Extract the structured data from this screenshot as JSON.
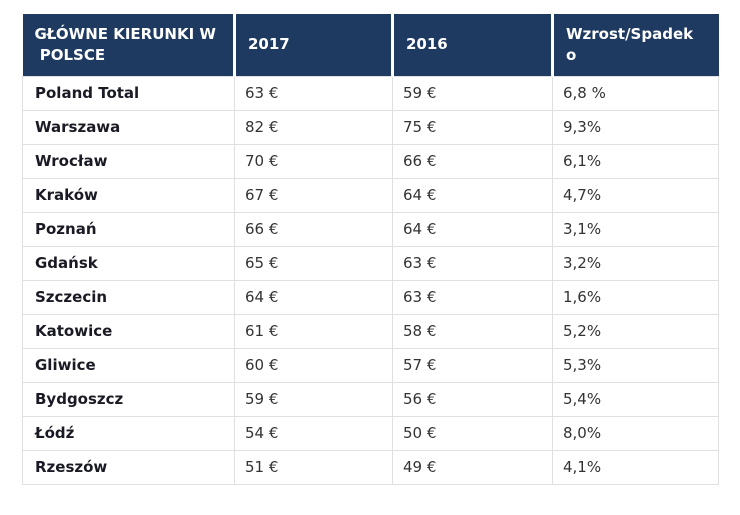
{
  "colors": {
    "header_bg": "#1f3a60",
    "header_text": "#ffffff",
    "row_label_text": "#1a1a24",
    "value_text": "#333333",
    "grid_line": "#e0e0e0",
    "page_bg": "#ffffff"
  },
  "table": {
    "headers": [
      {
        "id": "destination",
        "label": "GŁÓWNE KIERUNKI W\n POLSCE"
      },
      {
        "id": "y2017",
        "label": "2017"
      },
      {
        "id": "y2016",
        "label": "2016"
      },
      {
        "id": "change",
        "label": "Wzrost/Spadek o"
      }
    ],
    "rows": [
      {
        "destination": "Poland Total",
        "y2017": "63 €",
        "y2016": "59 €",
        "change": "6,8 %"
      },
      {
        "destination": "Warszawa",
        "y2017": "82 €",
        "y2016": "75 €",
        "change": "9,3%"
      },
      {
        "destination": "Wrocław",
        "y2017": "70 €",
        "y2016": "66 €",
        "change": "6,1%"
      },
      {
        "destination": "Kraków",
        "y2017": "67 €",
        "y2016": "64 €",
        "change": "4,7%"
      },
      {
        "destination": "Poznań",
        "y2017": "66 €",
        "y2016": "64 €",
        "change": "3,1%"
      },
      {
        "destination": "Gdańsk",
        "y2017": "65 €",
        "y2016": "63 €",
        "change": "3,2%"
      },
      {
        "destination": "Szczecin",
        "y2017": "64 €",
        "y2016": "63 €",
        "change": "1,6%"
      },
      {
        "destination": "Katowice",
        "y2017": "61 €",
        "y2016": "58 €",
        "change": "5,2%"
      },
      {
        "destination": "Gliwice",
        "y2017": "60 €",
        "y2016": "57 €",
        "change": "5,3%"
      },
      {
        "destination": "Bydgoszcz",
        "y2017": "59 €",
        "y2016": "56 €",
        "change": "5,4%"
      },
      {
        "destination": "Łódź",
        "y2017": "54 €",
        "y2016": "50 €",
        "change": "8,0%"
      },
      {
        "destination": "Rzeszów",
        "y2017": "51 €",
        "y2016": "49 €",
        "change": "4,1%"
      }
    ]
  },
  "chart_data": {
    "type": "table",
    "title": "GŁÓWNE KIERUNKI W POLSCE",
    "columns": [
      "GŁÓWNE KIERUNKI W POLSCE",
      "2017",
      "2016",
      "Wzrost/Spadek o"
    ],
    "categories": [
      "Poland Total",
      "Warszawa",
      "Wrocław",
      "Kraków",
      "Poznań",
      "Gdańsk",
      "Szczecin",
      "Katowice",
      "Gliwice",
      "Bydgoszcz",
      "Łódź",
      "Rzeszów"
    ],
    "series": [
      {
        "name": "2017 (EUR)",
        "values": [
          63,
          82,
          70,
          67,
          66,
          65,
          64,
          61,
          60,
          59,
          54,
          51
        ]
      },
      {
        "name": "2016 (EUR)",
        "values": [
          59,
          75,
          66,
          64,
          64,
          63,
          63,
          58,
          57,
          56,
          50,
          49
        ]
      },
      {
        "name": "Wzrost/Spadek o (%)",
        "values": [
          6.8,
          9.3,
          6.1,
          4.7,
          3.1,
          3.2,
          1.6,
          5.2,
          5.3,
          5.4,
          8.0,
          4.1
        ]
      }
    ]
  }
}
